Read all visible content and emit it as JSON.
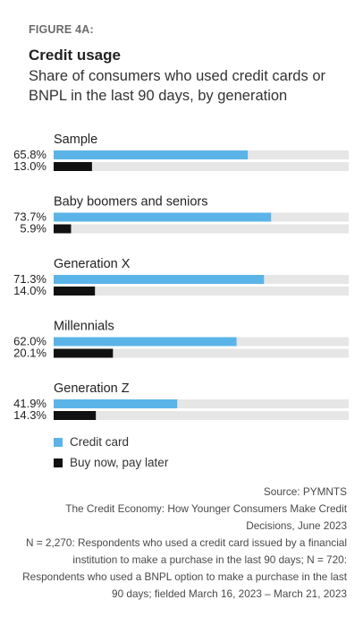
{
  "figure_label": "FIGURE 4A:",
  "title": "Credit usage",
  "subtitle": "Share of consumers who used credit cards or BNPL in the last 90 days, by generation",
  "colors": {
    "credit_card": "#5bb4e8",
    "bnpl": "#111111",
    "track": "#e6e6e6"
  },
  "chart_data": {
    "type": "bar",
    "orientation": "horizontal",
    "xlim": [
      0,
      100
    ],
    "categories": [
      "Sample",
      "Baby boomers and seniors",
      "Generation X",
      "Millennials",
      "Generation Z"
    ],
    "series": [
      {
        "name": "Credit card",
        "values": [
          65.8,
          73.7,
          71.3,
          62.0,
          41.9
        ],
        "labels": [
          "65.8%",
          "73.7%",
          "71.3%",
          "62.0%",
          "41.9%"
        ]
      },
      {
        "name": "Buy now, pay later",
        "values": [
          13.0,
          5.9,
          14.0,
          20.1,
          14.3
        ],
        "labels": [
          "13.0%",
          "5.9%",
          "14.0%",
          "20.1%",
          "14.3%"
        ]
      }
    ],
    "legend_position": "bottom-left"
  },
  "footer": {
    "source": "Source: PYMNTS",
    "report": "The Credit Economy: How Younger Consumers Make Credit Decisions, June 2023",
    "notes": "N = 2,270: Respondents who used a credit card issued by a financial institution to make a purchase in the last 90 days; N = 720: Respondents who used a BNPL option to make a purchase in the last 90 days; fielded March 16, 2023 – March 21, 2023"
  }
}
